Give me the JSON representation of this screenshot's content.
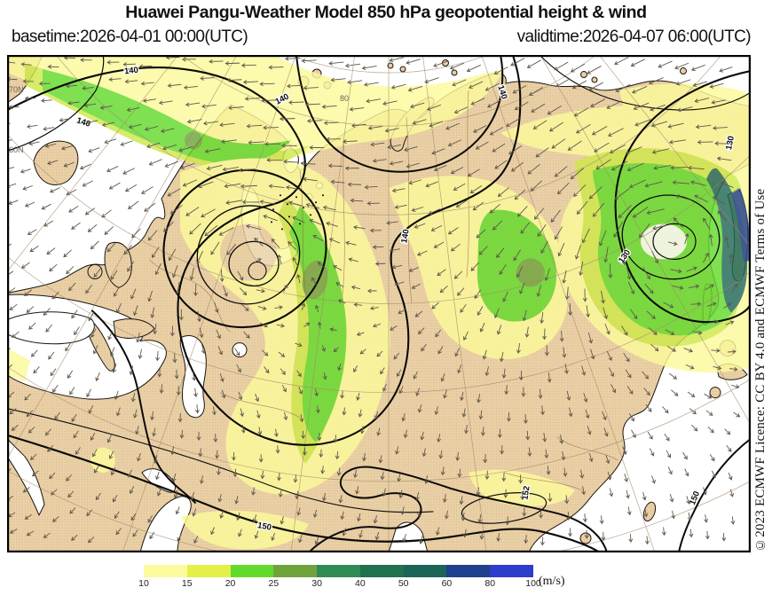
{
  "title": "Huawei Pangu-Weather Model 850 hPa geopotential height & wind",
  "basetime": "basetime:2026-04-01 00:00(UTC)",
  "validtime": "validtime:2026-04-07 06:00(UTC)",
  "license": "©2023 ECMWF Licence: CC BY 4.0 and ECMWF Terms of Use",
  "colorbar": {
    "unit": "(m/s)",
    "tick_labels": [
      "10",
      "15",
      "20",
      "25",
      "30",
      "40",
      "50",
      "60",
      "80",
      "100"
    ],
    "colors": [
      "#fbfa9d",
      "#e4ef49",
      "#63da2b",
      "#71a33c",
      "#2e8b55",
      "#20714e",
      "#1c6358",
      "#1f3f8f",
      "#2e3dcb"
    ]
  },
  "map": {
    "contour_labels": [
      "140",
      "140",
      "140",
      "140",
      "130",
      "150",
      "150",
      "152",
      "130",
      "140"
    ],
    "graticule_labels": [
      "70N",
      "60N",
      "80"
    ],
    "colors": {
      "land": "#e9d0a6",
      "ocean": "#ffffff",
      "contour": "#0a0a0a",
      "arrow": "#5f574b",
      "graticule": "#a2876a",
      "shade_yellow": "#fcfa9b",
      "shade_yellowgreen": "#cfe84a",
      "shade_green": "#63da2b",
      "shade_olive": "#71a33c",
      "shade_teal": "#1c6358",
      "shade_navy": "#1f3f8f"
    }
  }
}
